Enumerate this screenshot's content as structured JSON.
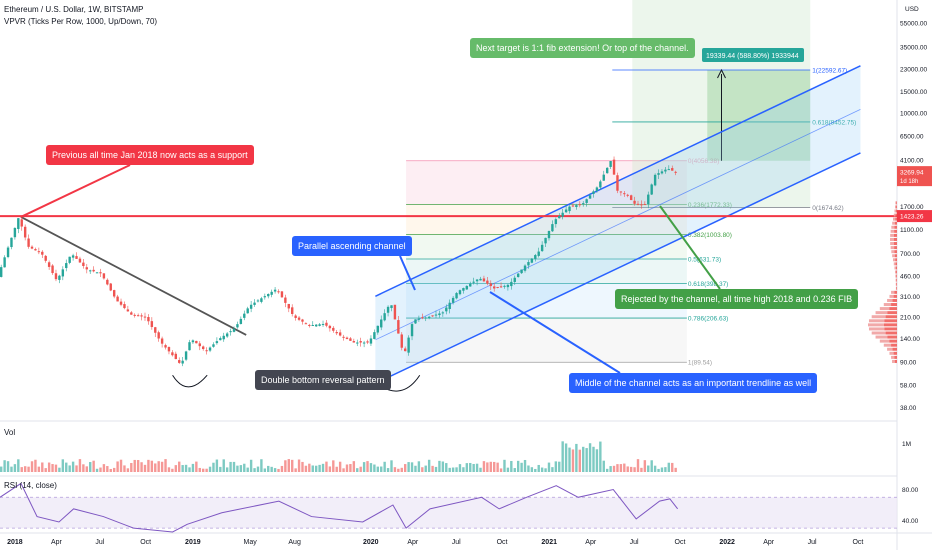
{
  "header": {
    "title": "Ethereum / U.S. Dollar, 1W, BITSTAMP",
    "indicator": "VPVR (Ticks Per Row, 1000, Up/Down, 70)"
  },
  "currency": "USD",
  "colors": {
    "up": "#26a69a",
    "down": "#ef5350",
    "channel": "#2962ff",
    "support": "#f23645",
    "trend": "#555555",
    "callout_red": "#f23645",
    "callout_blue": "#2962ff",
    "callout_green": "#43a047",
    "callout_dark": "#434651",
    "rsi": "#7e57c2"
  },
  "callouts": {
    "support": "Previous all time Jan 2018 now acts as a support",
    "channel": "Parallel ascending channel",
    "double_bottom": "Double bottom reversal pattern",
    "middle": "Middle of the channel acts as an important trendline as well",
    "rejected": "Rejected by the channel, all time high 2018 and 0.236 FIB",
    "target": "Next target is 1:1 fib extension! Or top of the channel."
  },
  "chart_data": {
    "type": "candlestick",
    "symbol": "Ethereum / U.S. Dollar",
    "interval": "1W",
    "exchange": "BITSTAMP",
    "y_scale": "log",
    "ylim": [
      30,
      85000
    ],
    "y_ticks": [
      "85000.00",
      "55000.00",
      "35000.00",
      "23000.00",
      "15000.00",
      "10000.00",
      "6500.00",
      "4100.00",
      "2700.00",
      "1700.00",
      "1100.00",
      "700.00",
      "460.00",
      "310.00",
      "210.00",
      "140.00",
      "90.00",
      "58.00",
      "38.00"
    ],
    "x_ticks": [
      "2018",
      "Apr",
      "Jul",
      "Oct",
      "2019",
      "May",
      "Aug",
      "2020",
      "Apr",
      "Jul",
      "Oct",
      "2021",
      "Apr",
      "Jul",
      "Oct",
      "2022",
      "Apr",
      "Jul",
      "Oct"
    ],
    "price_badges": [
      {
        "label": "3269.94",
        "sub": "1d 18h",
        "value": 3269.94
      },
      {
        "label": "1423.26",
        "value": 1423.26
      }
    ],
    "support_level": 1423.26,
    "fib_retracement": [
      {
        "label": "0(4056.38)",
        "value": 4056.38
      },
      {
        "label": "0.236(1772.33)",
        "value": 1772.33
      },
      {
        "label": "0.382(1003.80)",
        "value": 1003.8
      },
      {
        "label": "0.5(631.73)",
        "value": 631.73
      },
      {
        "label": "0.618(398.37)",
        "value": 398.37
      },
      {
        "label": "0.786(206.63)",
        "value": 206.63
      },
      {
        "label": "1(89.54)",
        "value": 89.54
      }
    ],
    "fib_extension": [
      {
        "label": "1(22592.67)",
        "value": 22592.67
      },
      {
        "label": "0.618(8452.75)",
        "value": 8452.75
      },
      {
        "label": "0(1674.62)",
        "value": 1674.62
      }
    ],
    "measure_label": "19339.44 (588.80%) 1933944",
    "price_path": [
      [
        "2017-12-01",
        450
      ],
      [
        "2018-01-13",
        1400
      ],
      [
        "2018-02-01",
        800
      ],
      [
        "2018-03-01",
        700
      ],
      [
        "2018-04-01",
        420
      ],
      [
        "2018-05-01",
        700
      ],
      [
        "2018-06-01",
        520
      ],
      [
        "2018-07-01",
        480
      ],
      [
        "2018-08-01",
        290
      ],
      [
        "2018-09-01",
        220
      ],
      [
        "2018-10-01",
        210
      ],
      [
        "2018-11-01",
        130
      ],
      [
        "2018-12-12",
        85
      ],
      [
        "2019-01-01",
        140
      ],
      [
        "2019-02-01",
        110
      ],
      [
        "2019-03-01",
        140
      ],
      [
        "2019-04-01",
        170
      ],
      [
        "2019-05-01",
        260
      ],
      [
        "2019-06-26",
        360
      ],
      [
        "2019-08-01",
        210
      ],
      [
        "2019-09-01",
        180
      ],
      [
        "2019-10-01",
        185
      ],
      [
        "2019-11-01",
        150
      ],
      [
        "2019-12-01",
        130
      ],
      [
        "2020-01-01",
        130
      ],
      [
        "2020-02-15",
        280
      ],
      [
        "2020-03-13",
        100
      ],
      [
        "2020-04-01",
        200
      ],
      [
        "2020-05-01",
        210
      ],
      [
        "2020-06-01",
        230
      ],
      [
        "2020-07-01",
        340
      ],
      [
        "2020-08-15",
        440
      ],
      [
        "2020-09-15",
        360
      ],
      [
        "2020-10-15",
        390
      ],
      [
        "2020-11-15",
        550
      ],
      [
        "2020-12-15",
        730
      ],
      [
        "2021-01-15",
        1300
      ],
      [
        "2021-02-15",
        1700
      ],
      [
        "2021-03-15",
        1800
      ],
      [
        "2021-04-15",
        2500
      ],
      [
        "2021-05-12",
        4100
      ],
      [
        "2021-05-25",
        2300
      ],
      [
        "2021-06-15",
        2100
      ],
      [
        "2021-06-28",
        1800
      ],
      [
        "2021-07-20",
        1750
      ],
      [
        "2021-08-10",
        3100
      ],
      [
        "2021-09-05",
        3500
      ],
      [
        "2021-09-21",
        3270
      ]
    ],
    "rsi": {
      "label": "RSI (14, close)",
      "ylim": [
        25,
        95
      ],
      "levels": [
        30,
        70
      ],
      "y_ticks": [
        "80.00",
        "40.00"
      ],
      "path": [
        [
          "2017-12-01",
          70
        ],
        [
          "2018-01-13",
          88
        ],
        [
          "2018-02-15",
          45
        ],
        [
          "2018-04-01",
          38
        ],
        [
          "2018-05-01",
          55
        ],
        [
          "2018-07-01",
          45
        ],
        [
          "2018-09-01",
          30
        ],
        [
          "2018-11-20",
          25
        ],
        [
          "2018-12-20",
          35
        ],
        [
          "2019-03-01",
          50
        ],
        [
          "2019-06-26",
          65
        ],
        [
          "2019-09-01",
          45
        ],
        [
          "2019-12-15",
          38
        ],
        [
          "2020-02-15",
          60
        ],
        [
          "2020-03-13",
          30
        ],
        [
          "2020-05-01",
          55
        ],
        [
          "2020-08-15",
          70
        ],
        [
          "2020-09-20",
          55
        ],
        [
          "2020-11-15",
          70
        ],
        [
          "2021-01-15",
          85
        ],
        [
          "2021-03-01",
          70
        ],
        [
          "2021-05-12",
          80
        ],
        [
          "2021-06-28",
          42
        ],
        [
          "2021-08-15",
          65
        ],
        [
          "2021-09-05",
          68
        ],
        [
          "2021-09-21",
          55
        ]
      ]
    },
    "volume": {
      "label": "Vol",
      "y_ticks": [
        "1M"
      ]
    }
  }
}
